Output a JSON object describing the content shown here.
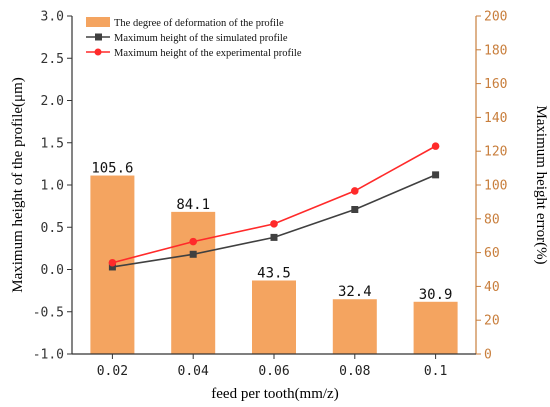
{
  "chart_data": {
    "type": "bar+line",
    "title": "",
    "xlabel": "feed per tooth(mm/z)",
    "ylabel_left": "Maximum height of the profile(μm)",
    "ylabel_right": "Maximum height error(%)",
    "categories": [
      "0.02",
      "0.04",
      "0.06",
      "0.08",
      "0.1"
    ],
    "ylim_left": [
      -1.0,
      3.0
    ],
    "ylim_right": [
      0,
      200
    ],
    "yticks_left": [
      "-1.0",
      "-0.5",
      "0.0",
      "0.5",
      "1.0",
      "1.5",
      "2.0",
      "2.5",
      "3.0"
    ],
    "yticks_right": [
      "0",
      "20",
      "40",
      "60",
      "80",
      "100",
      "120",
      "140",
      "160",
      "180",
      "200"
    ],
    "bar_series": {
      "name": "The degree of deformation of the profile",
      "axis": "right",
      "values": [
        105.6,
        84.1,
        43.5,
        32.4,
        30.9
      ],
      "labels": [
        "105.6",
        "84.1",
        "43.5",
        "32.4",
        "30.9"
      ],
      "color": "#F4A460"
    },
    "line_series": [
      {
        "name": "Maximum height of the simulated profile",
        "axis": "left",
        "values": [
          0.03,
          0.18,
          0.38,
          0.71,
          1.12
        ],
        "color": "#404040",
        "marker": "square"
      },
      {
        "name": "Maximum height of the experimental profile",
        "axis": "left",
        "values": [
          0.08,
          0.33,
          0.54,
          0.93,
          1.46
        ],
        "color": "#FF2A2A",
        "marker": "circle"
      }
    ],
    "legend_position": "top-left",
    "grid": false,
    "colors": {
      "left_axis": "#333333",
      "right_axis": "#C87E3C"
    }
  }
}
